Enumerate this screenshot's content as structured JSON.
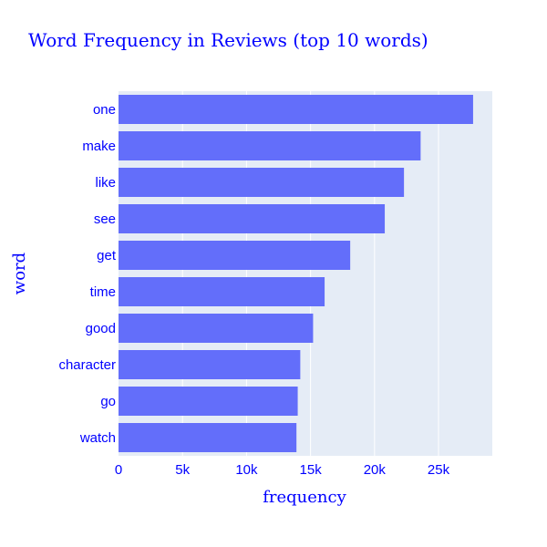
{
  "colors": {
    "text": "#0000ff",
    "bar": "#636efa",
    "plot_bg": "#e5ecf6",
    "grid": "#ffffff"
  },
  "chart_data": {
    "type": "bar",
    "orientation": "horizontal",
    "title": "Word Frequency in Reviews (top 10 words)",
    "xlabel": "frequency",
    "ylabel": "word",
    "categories": [
      "one",
      "make",
      "like",
      "see",
      "get",
      "time",
      "good",
      "character",
      "go",
      "watch"
    ],
    "values": [
      27700,
      23600,
      22300,
      20800,
      18100,
      16100,
      15200,
      14200,
      14000,
      13900
    ],
    "xlim": [
      0,
      29200
    ],
    "xticks": [
      0,
      5000,
      10000,
      15000,
      20000,
      25000
    ],
    "xtick_labels": [
      "0",
      "5k",
      "10k",
      "15k",
      "20k",
      "25k"
    ],
    "grid": true,
    "legend": false
  }
}
